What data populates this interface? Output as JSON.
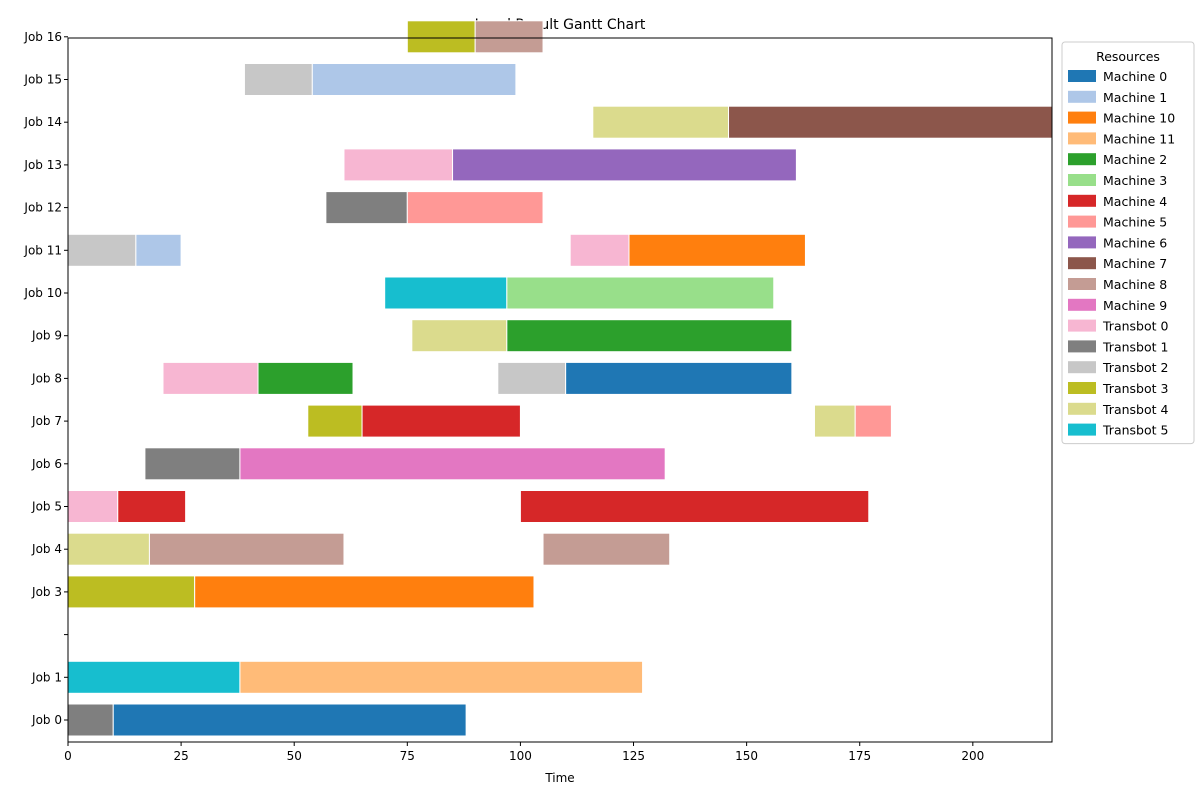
{
  "chart_data": {
    "type": "gantt",
    "title": "Local Result Gantt Chart",
    "xlabel": "Time",
    "ylabel": "",
    "xlim": [
      0,
      217.5
    ],
    "xticks": [
      0,
      25,
      50,
      75,
      100,
      125,
      150,
      175,
      200
    ],
    "rows": [
      "Job 0",
      "Job 1",
      "",
      "Job 3",
      "Job 4",
      "Job 5",
      "Job 6",
      "Job 7",
      "Job 8",
      "Job 9",
      "Job 10",
      "Job 11",
      "Job 12",
      "Job 13",
      "Job 14",
      "Job 15",
      "Job 16"
    ],
    "legend": {
      "title": "Resources",
      "placement": "outside-right",
      "entries": [
        {
          "name": "Machine 0",
          "color": "#1f77b4"
        },
        {
          "name": "Machine 1",
          "color": "#aec7e8"
        },
        {
          "name": "Machine 10",
          "color": "#ff7f0e"
        },
        {
          "name": "Machine 11",
          "color": "#ffbb78"
        },
        {
          "name": "Machine 2",
          "color": "#2ca02c"
        },
        {
          "name": "Machine 3",
          "color": "#98df8a"
        },
        {
          "name": "Machine 4",
          "color": "#d62728"
        },
        {
          "name": "Machine 5",
          "color": "#ff9896"
        },
        {
          "name": "Machine 6",
          "color": "#9467bd"
        },
        {
          "name": "Machine 7",
          "color": "#8c564b"
        },
        {
          "name": "Machine 8",
          "color": "#c49c94"
        },
        {
          "name": "Machine 9",
          "color": "#e377c2"
        },
        {
          "name": "Transbot 0",
          "color": "#f7b6d2"
        },
        {
          "name": "Transbot 1",
          "color": "#7f7f7f"
        },
        {
          "name": "Transbot 2",
          "color": "#c7c7c7"
        },
        {
          "name": "Transbot 3",
          "color": "#bcbd22"
        },
        {
          "name": "Transbot 4",
          "color": "#dbdb8d"
        },
        {
          "name": "Transbot 5",
          "color": "#17becf"
        }
      ]
    },
    "tasks": [
      {
        "job": "Job 0",
        "resource": "Transbot 1",
        "start": 0,
        "end": 10
      },
      {
        "job": "Job 0",
        "resource": "Machine 0",
        "start": 10,
        "end": 88
      },
      {
        "job": "Job 1",
        "resource": "Transbot 5",
        "start": 0,
        "end": 38
      },
      {
        "job": "Job 1",
        "resource": "Machine 11",
        "start": 38,
        "end": 127
      },
      {
        "job": "Job 3",
        "resource": "Transbot 3",
        "start": 0,
        "end": 28
      },
      {
        "job": "Job 3",
        "resource": "Machine 10",
        "start": 28,
        "end": 103
      },
      {
        "job": "Job 4",
        "resource": "Transbot 4",
        "start": 0,
        "end": 18
      },
      {
        "job": "Job 4",
        "resource": "Machine 8",
        "start": 18,
        "end": 61
      },
      {
        "job": "Job 4",
        "resource": "Machine 8",
        "start": 105,
        "end": 133
      },
      {
        "job": "Job 5",
        "resource": "Transbot 0",
        "start": 0,
        "end": 11
      },
      {
        "job": "Job 5",
        "resource": "Machine 4",
        "start": 11,
        "end": 26
      },
      {
        "job": "Job 5",
        "resource": "Machine 4",
        "start": 100,
        "end": 177
      },
      {
        "job": "Job 6",
        "resource": "Transbot 1",
        "start": 17,
        "end": 38
      },
      {
        "job": "Job 6",
        "resource": "Machine 9",
        "start": 38,
        "end": 132
      },
      {
        "job": "Job 7",
        "resource": "Transbot 3",
        "start": 53,
        "end": 65
      },
      {
        "job": "Job 7",
        "resource": "Machine 4",
        "start": 65,
        "end": 100
      },
      {
        "job": "Job 7",
        "resource": "Transbot 4",
        "start": 165,
        "end": 174
      },
      {
        "job": "Job 7",
        "resource": "Machine 5",
        "start": 174,
        "end": 182
      },
      {
        "job": "Job 8",
        "resource": "Transbot 0",
        "start": 21,
        "end": 42
      },
      {
        "job": "Job 8",
        "resource": "Machine 2",
        "start": 42,
        "end": 63
      },
      {
        "job": "Job 8",
        "resource": "Transbot 2",
        "start": 95,
        "end": 110
      },
      {
        "job": "Job 8",
        "resource": "Machine 0",
        "start": 110,
        "end": 160
      },
      {
        "job": "Job 9",
        "resource": "Transbot 4",
        "start": 76,
        "end": 97
      },
      {
        "job": "Job 9",
        "resource": "Machine 2",
        "start": 97,
        "end": 160
      },
      {
        "job": "Job 10",
        "resource": "Transbot 5",
        "start": 70,
        "end": 97
      },
      {
        "job": "Job 10",
        "resource": "Machine 3",
        "start": 97,
        "end": 156
      },
      {
        "job": "Job 11",
        "resource": "Transbot 2",
        "start": 0,
        "end": 15
      },
      {
        "job": "Job 11",
        "resource": "Machine 1",
        "start": 15,
        "end": 25
      },
      {
        "job": "Job 11",
        "resource": "Transbot 0",
        "start": 111,
        "end": 124
      },
      {
        "job": "Job 11",
        "resource": "Machine 10",
        "start": 124,
        "end": 163
      },
      {
        "job": "Job 12",
        "resource": "Transbot 1",
        "start": 57,
        "end": 75
      },
      {
        "job": "Job 12",
        "resource": "Machine 5",
        "start": 75,
        "end": 105
      },
      {
        "job": "Job 13",
        "resource": "Transbot 0",
        "start": 61,
        "end": 85
      },
      {
        "job": "Job 13",
        "resource": "Machine 6",
        "start": 85,
        "end": 161
      },
      {
        "job": "Job 14",
        "resource": "Transbot 4",
        "start": 116,
        "end": 146
      },
      {
        "job": "Job 14",
        "resource": "Machine 7",
        "start": 146,
        "end": 217.5
      },
      {
        "job": "Job 15",
        "resource": "Transbot 2",
        "start": 39,
        "end": 54
      },
      {
        "job": "Job 15",
        "resource": "Machine 1",
        "start": 54,
        "end": 99
      },
      {
        "job": "Job 16",
        "resource": "Transbot 3",
        "start": 75,
        "end": 90
      },
      {
        "job": "Job 16",
        "resource": "Machine 8",
        "start": 90,
        "end": 105
      }
    ]
  }
}
